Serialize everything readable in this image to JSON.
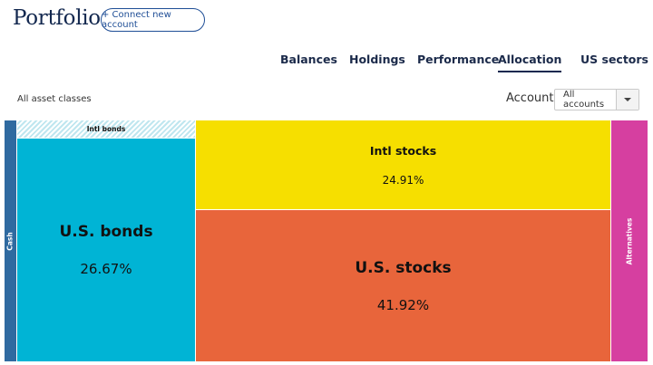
{
  "header": {
    "title": "Portfolio",
    "connect_label": "+ Connect new account"
  },
  "tabs": [
    {
      "label": "Balances",
      "active": false
    },
    {
      "label": "Holdings",
      "active": false
    },
    {
      "label": "Performance",
      "active": false
    },
    {
      "label": "Allocation",
      "active": true
    },
    {
      "label": "US sectors",
      "active": false
    }
  ],
  "filter": {
    "asset_class_label": "All asset classes",
    "accounts_label": "Accounts",
    "accounts_value": "All accounts"
  },
  "treemap": {
    "cells": [
      {
        "name": "Cash",
        "percent": "",
        "color": "#2f6aa0"
      },
      {
        "name": "Intl bonds",
        "percent": "",
        "color": "#bfe6ef"
      },
      {
        "name": "U.S. bonds",
        "percent": "26.67%",
        "color": "#00b4d5"
      },
      {
        "name": "Intl stocks",
        "percent": "24.91%",
        "color": "#f6df00"
      },
      {
        "name": "U.S. stocks",
        "percent": "41.92%",
        "color": "#e8653b"
      },
      {
        "name": "Alternatives",
        "percent": "",
        "color": "#d63fa0"
      }
    ]
  }
}
